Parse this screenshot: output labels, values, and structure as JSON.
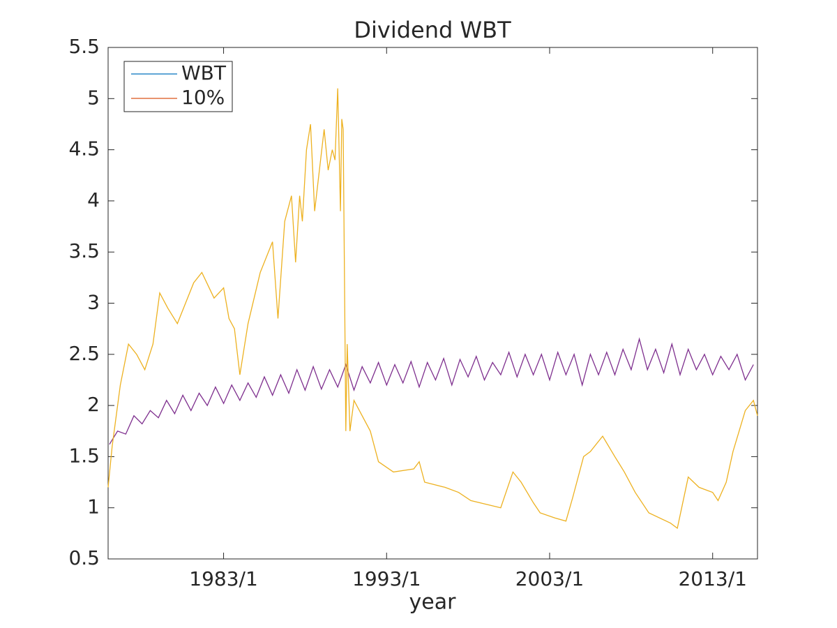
{
  "chart_data": {
    "type": "line",
    "title": "Dividend WBT",
    "xlabel": "year",
    "xlim": [
      "1975/12",
      "2015/10"
    ],
    "xticks": [
      "1983/1",
      "1993/1",
      "2003/1",
      "2013/1"
    ],
    "ylim": [
      0.5,
      5.5
    ],
    "yticks": [
      0.5,
      1,
      1.5,
      2,
      2.5,
      3,
      3.5,
      4,
      4.5,
      5,
      5.5
    ],
    "legend": "upper left",
    "series": [
      {
        "name": "WBT",
        "color": "#7e2f8e",
        "legend_color": "#0072bd",
        "x": [
          "1976/1",
          "1976/7",
          "1977/1",
          "1977/7",
          "1978/1",
          "1978/7",
          "1979/1",
          "1979/7",
          "1980/1",
          "1980/7",
          "1981/1",
          "1981/7",
          "1982/1",
          "1982/7",
          "1983/1",
          "1983/7",
          "1984/1",
          "1984/7",
          "1985/1",
          "1985/7",
          "1986/1",
          "1986/7",
          "1987/1",
          "1987/7",
          "1988/1",
          "1988/7",
          "1989/1",
          "1989/7",
          "1990/1",
          "1990/7",
          "1991/1",
          "1991/7",
          "1992/1",
          "1992/7",
          "1993/1",
          "1993/7",
          "1994/1",
          "1994/7",
          "1995/1",
          "1995/7",
          "1996/1",
          "1996/7",
          "1997/1",
          "1997/7",
          "1998/1",
          "1998/7",
          "1999/1",
          "1999/7",
          "2000/1",
          "2000/7",
          "2001/1",
          "2001/7",
          "2002/1",
          "2002/7",
          "2003/1",
          "2003/7",
          "2004/1",
          "2004/7",
          "2005/1",
          "2005/7",
          "2006/1",
          "2006/7",
          "2007/1",
          "2007/7",
          "2008/1",
          "2008/7",
          "2009/1",
          "2009/7",
          "2010/1",
          "2010/7",
          "2011/1",
          "2011/7",
          "2012/1",
          "2012/7",
          "2013/1",
          "2013/7",
          "2014/1",
          "2014/7",
          "2015/1",
          "2015/7"
        ],
        "values": [
          1.62,
          1.75,
          1.72,
          1.9,
          1.82,
          1.95,
          1.88,
          2.05,
          1.92,
          2.1,
          1.95,
          2.12,
          2.0,
          2.18,
          2.02,
          2.2,
          2.05,
          2.22,
          2.08,
          2.28,
          2.1,
          2.3,
          2.12,
          2.35,
          2.15,
          2.38,
          2.16,
          2.35,
          2.18,
          2.4,
          2.15,
          2.38,
          2.22,
          2.42,
          2.2,
          2.4,
          2.22,
          2.43,
          2.18,
          2.42,
          2.25,
          2.46,
          2.2,
          2.45,
          2.28,
          2.48,
          2.25,
          2.42,
          2.3,
          2.52,
          2.28,
          2.5,
          2.3,
          2.5,
          2.25,
          2.52,
          2.3,
          2.5,
          2.2,
          2.5,
          2.3,
          2.52,
          2.3,
          2.55,
          2.35,
          2.65,
          2.35,
          2.55,
          2.32,
          2.6,
          2.3,
          2.55,
          2.35,
          2.5,
          2.3,
          2.48,
          2.35,
          2.5,
          2.25,
          2.4
        ]
      },
      {
        "name": "10%",
        "color": "#edb120",
        "legend_color": "#d95319",
        "x": [
          "1975/12",
          "1976/3",
          "1976/9",
          "1977/3",
          "1977/9",
          "1978/3",
          "1978/9",
          "1979/2",
          "1979/8",
          "1980/3",
          "1980/9",
          "1981/3",
          "1981/9",
          "1982/6",
          "1983/1",
          "1983/5",
          "1983/9",
          "1984/1",
          "1984/7",
          "1985/4",
          "1986/1",
          "1986/5",
          "1986/10",
          "1987/3",
          "1987/6",
          "1987/9",
          "1987/11",
          "1988/2",
          "1988/5",
          "1988/8",
          "1989/3",
          "1989/6",
          "1989/9",
          "1989/11",
          "1990/1",
          "1990/3",
          "1990/4",
          "1990/5",
          "1990/7",
          "1990/8",
          "1990/10",
          "1991/1",
          "1991/7",
          "1992/1",
          "1992/7",
          "1993/6",
          "1994/9",
          "1995/1",
          "1995/5",
          "1996/8",
          "1997/6",
          "1998/3",
          "2000/1",
          "2000/10",
          "2001/4",
          "2002/1",
          "2002/6",
          "2003/5",
          "2004/1",
          "2004/6",
          "2005/2",
          "2005/7",
          "2006/4",
          "2007/1",
          "2007/8",
          "2008/4",
          "2009/2",
          "2010/6",
          "2010/11",
          "2011/7",
          "2012/3",
          "2013/1",
          "2013/5",
          "2013/11",
          "2014/4",
          "2015/1",
          "2015/7",
          "2015/10"
        ],
        "values": [
          1.2,
          1.6,
          2.2,
          2.6,
          2.5,
          2.35,
          2.6,
          3.1,
          2.95,
          2.8,
          3.0,
          3.2,
          3.3,
          3.05,
          3.15,
          2.85,
          2.75,
          2.3,
          2.8,
          3.3,
          3.6,
          2.85,
          3.8,
          4.05,
          3.4,
          4.05,
          3.8,
          4.5,
          4.75,
          3.9,
          4.7,
          4.3,
          4.5,
          4.4,
          5.1,
          3.9,
          4.8,
          4.7,
          1.75,
          2.6,
          1.75,
          2.05,
          1.9,
          1.75,
          1.45,
          1.35,
          1.38,
          1.45,
          1.25,
          1.2,
          1.15,
          1.07,
          1.0,
          1.35,
          1.25,
          1.05,
          0.95,
          0.9,
          0.87,
          1.1,
          1.5,
          1.55,
          1.7,
          1.5,
          1.35,
          1.15,
          0.95,
          0.85,
          0.8,
          1.3,
          1.2,
          1.15,
          1.07,
          1.25,
          1.55,
          1.95,
          2.05,
          1.9
        ]
      }
    ]
  }
}
